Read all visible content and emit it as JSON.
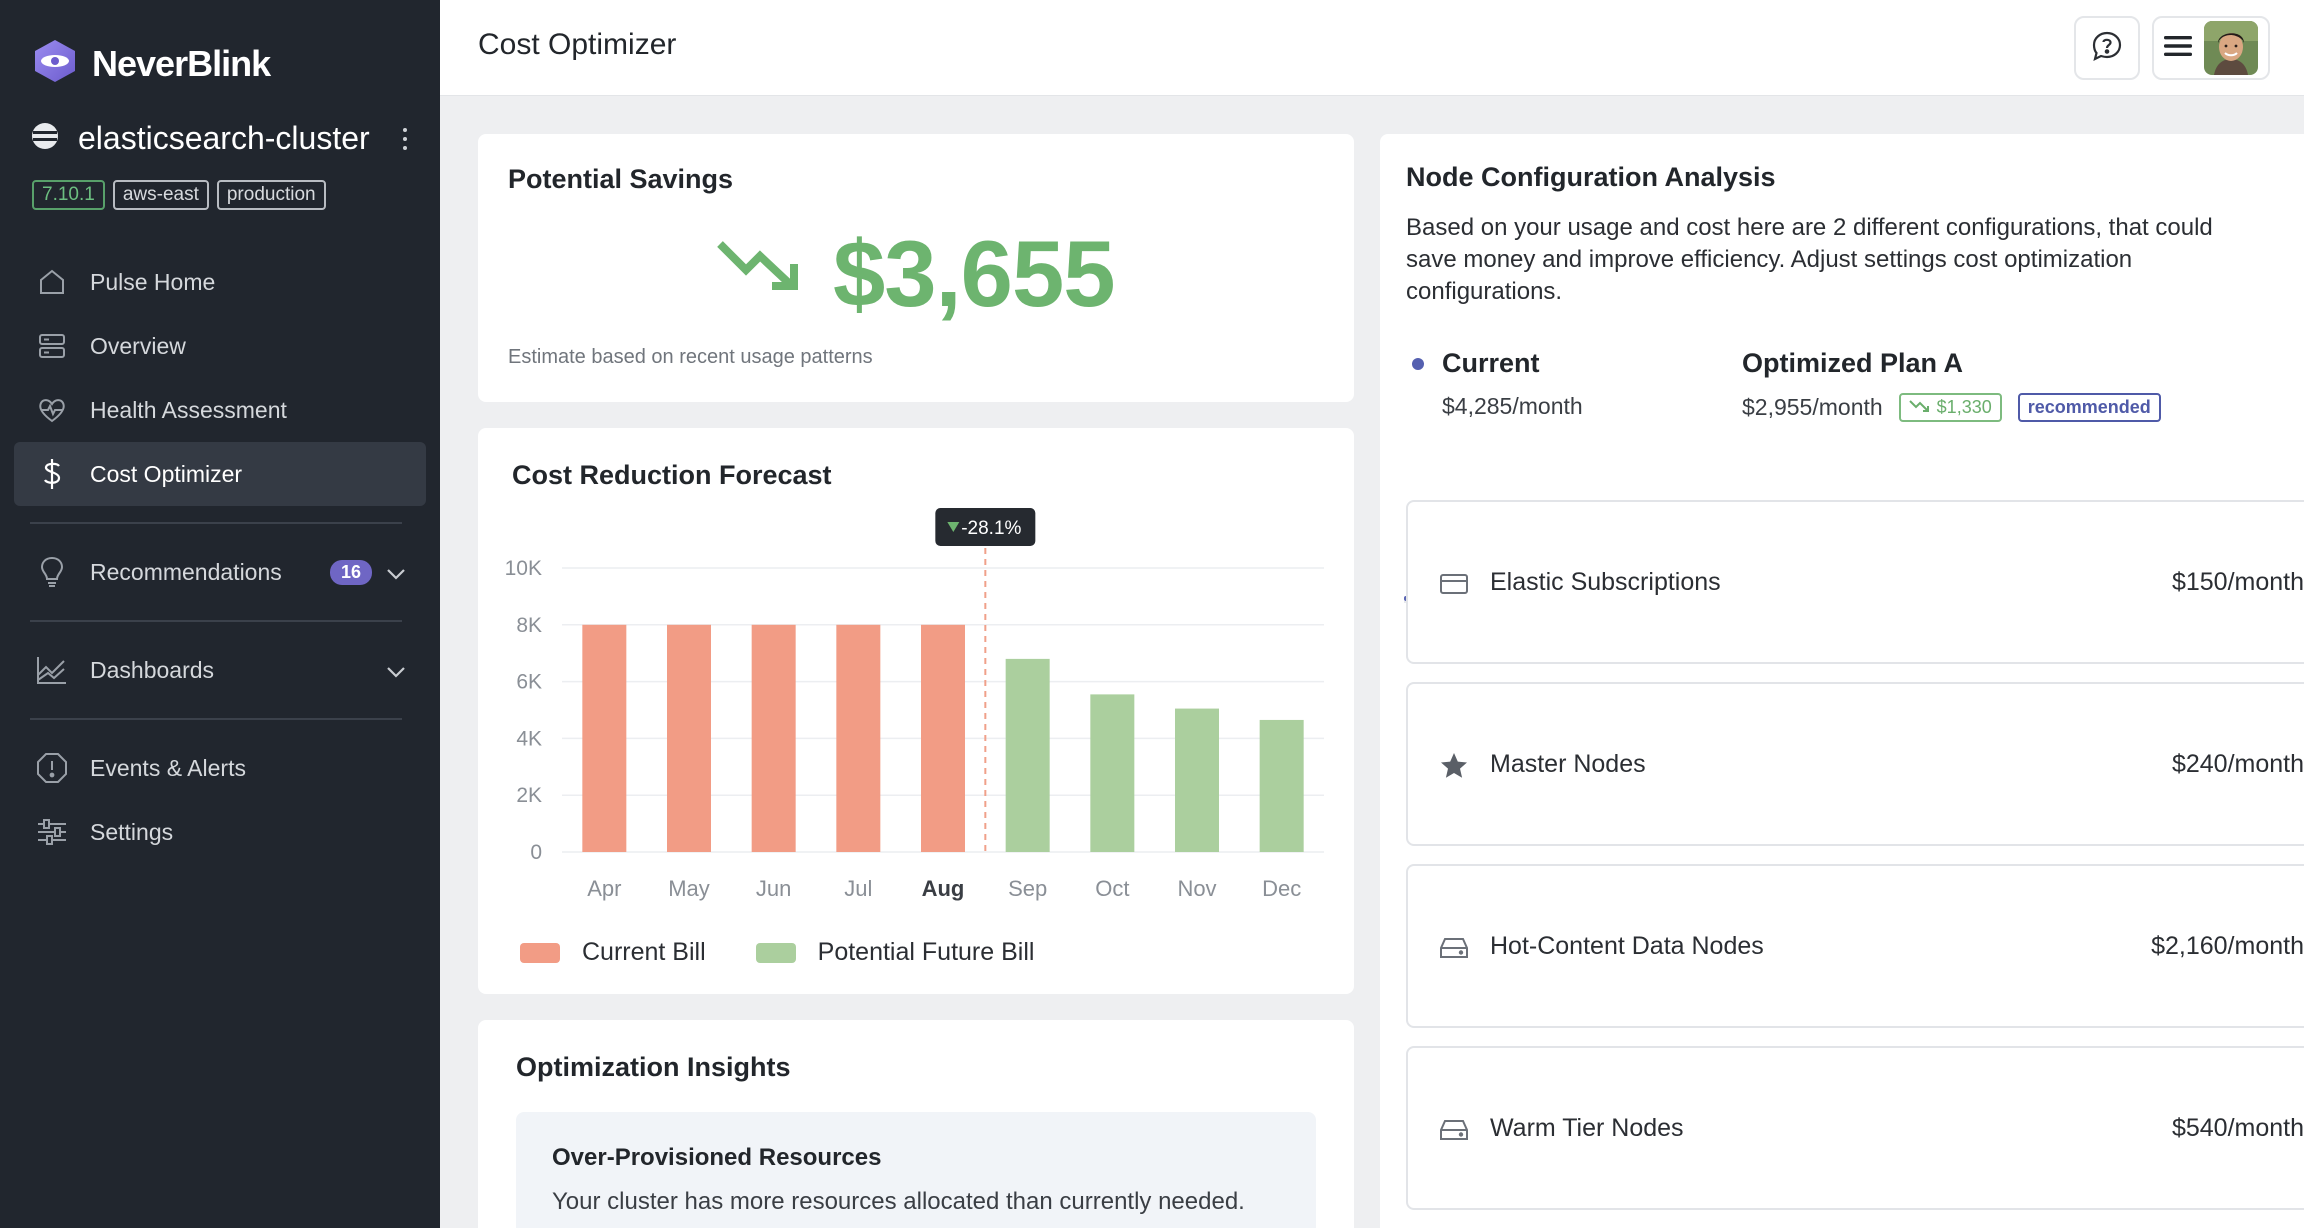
{
  "brand": {
    "name": "NeverBlink"
  },
  "cluster": {
    "name": "elasticsearch-cluster",
    "tags": [
      "7.10.1",
      "aws-east",
      "production"
    ]
  },
  "nav": {
    "items": [
      {
        "label": "Pulse Home",
        "icon": "home-icon"
      },
      {
        "label": "Overview",
        "icon": "server-icon"
      },
      {
        "label": "Health Assessment",
        "icon": "heart-pulse-icon"
      },
      {
        "label": "Cost Optimizer",
        "icon": "dollar-icon",
        "active": true
      },
      {
        "label": "Recommendations",
        "icon": "lightbulb-icon",
        "badge": "16"
      },
      {
        "label": "Dashboards",
        "icon": "chart-icon"
      },
      {
        "label": "Events & Alerts",
        "icon": "alert-icon"
      },
      {
        "label": "Settings",
        "icon": "sliders-icon"
      }
    ]
  },
  "header": {
    "title": "Cost Optimizer"
  },
  "savings": {
    "title": "Potential Savings",
    "amount": "$3,655",
    "note": "Estimate based on recent usage patterns"
  },
  "forecast": {
    "title": "Cost Reduction Forecast",
    "tooltip": "-28.1%",
    "legend_current": "Current Bill",
    "legend_future": "Potential Future Bill"
  },
  "chart_data": {
    "type": "bar",
    "categories": [
      "Apr",
      "May",
      "Jun",
      "Jul",
      "Aug",
      "Sep",
      "Oct",
      "Nov",
      "Dec"
    ],
    "series": [
      {
        "name": "Current Bill",
        "values": [
          8000,
          8000,
          8000,
          8000,
          8000,
          null,
          null,
          null,
          null
        ],
        "color": "#f29c85"
      },
      {
        "name": "Potential Future Bill",
        "values": [
          null,
          null,
          null,
          null,
          null,
          6800,
          5550,
          5050,
          4650
        ],
        "color": "#abcf9e"
      }
    ],
    "yticks": [
      "0",
      "2K",
      "4K",
      "6K",
      "8K",
      "10K"
    ],
    "ylim": [
      0,
      10000
    ],
    "highlight_category": "Aug",
    "annotation": "-28.1%",
    "grid": true
  },
  "insights": {
    "title": "Optimization Insights",
    "item_title": "Over-Provisioned Resources",
    "item_text": "Your cluster has more resources allocated than currently needed."
  },
  "node_config": {
    "title": "Node Configuration Analysis",
    "description": "Based on your usage and cost here are 2 different configurations, that could save money and improve efficiency. Adjust settings cost optimization configurations.",
    "current": {
      "name": "Current",
      "price": "$4,285/month"
    },
    "plan_a": {
      "name": "Optimized Plan A",
      "price": "$2,955/month",
      "savings": "$1,330",
      "badge": "recommended"
    },
    "rows": [
      {
        "label": "Elastic Subscriptions",
        "price": "$150/month",
        "icon": "card-icon"
      },
      {
        "label": "Master Nodes",
        "price": "$240/month",
        "icon": "star-icon"
      },
      {
        "label": "Hot-Content Data Nodes",
        "price": "$2,160/month",
        "icon": "drive-icon"
      },
      {
        "label": "Warm Tier Nodes",
        "price": "$540/month",
        "icon": "drive-icon"
      }
    ]
  },
  "colors": {
    "sidebar": "#21262e",
    "accent": "#6f66c4",
    "savings_green": "#6db46f",
    "bar_current": "#f29c85",
    "bar_future": "#abcf9e"
  }
}
